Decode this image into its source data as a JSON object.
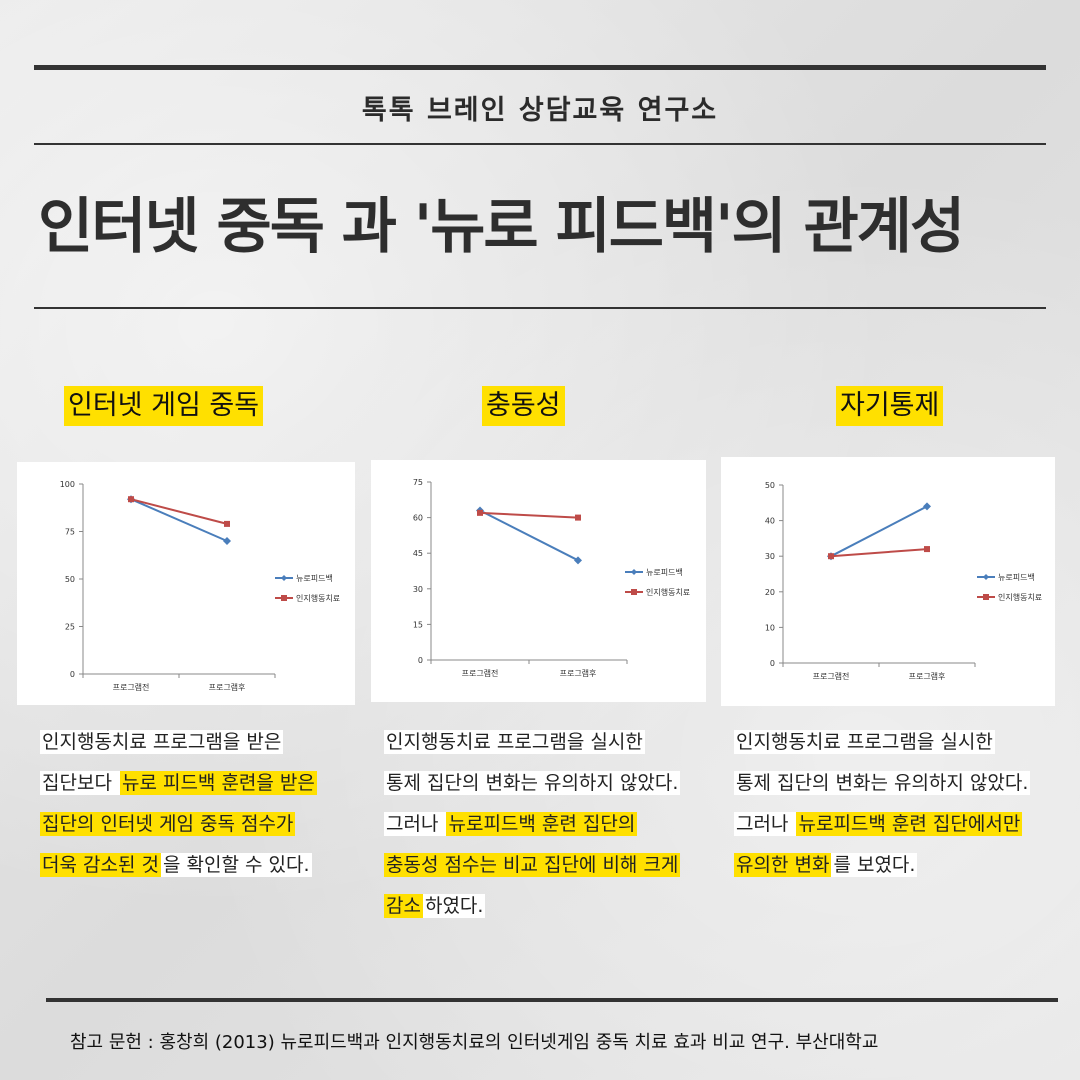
{
  "header": {
    "org": "톡톡 브레인 상담교육 연구소",
    "title": "인터넷 중독 과 '뉴로 피드백'의 관계성"
  },
  "columns": [
    {
      "heading": "인터넷 게임 중독",
      "desc": [
        [
          {
            "t": "인지행동치료 프로그램을 받은 ",
            "h": false
          }
        ],
        [
          {
            "t": "집단보다 ",
            "h": false
          },
          {
            "t": "뉴로 피드백 훈련을 받은",
            "h": true
          }
        ],
        [
          {
            "t": "집단의 인터넷 게임 중독 점수가",
            "h": true
          }
        ],
        [
          {
            "t": "더욱 감소된 것",
            "h": true
          },
          {
            "t": "을 확인할 수 있다.",
            "h": false
          }
        ]
      ]
    },
    {
      "heading": "충동성",
      "desc": [
        [
          {
            "t": "인지행동치료 프로그램을 실시한",
            "h": false
          }
        ],
        [
          {
            "t": "통제 집단의 변화는 유의하지 않았다.",
            "h": false
          }
        ],
        [
          {
            "t": "그러나 ",
            "h": false
          },
          {
            "t": "뉴로피드백 훈련 집단의",
            "h": true
          }
        ],
        [
          {
            "t": "충동성 점수는 비교 집단에 비해 크게",
            "h": true
          }
        ],
        [
          {
            "t": "감소",
            "h": true
          },
          {
            "t": "하였다.",
            "h": false
          }
        ]
      ]
    },
    {
      "heading": "자기통제",
      "desc": [
        [
          {
            "t": "인지행동치료 프로그램을 실시한",
            "h": false
          }
        ],
        [
          {
            "t": "통제 집단의 변화는 유의하지 않았다.",
            "h": false
          }
        ],
        [
          {
            "t": "그러나 ",
            "h": false
          },
          {
            "t": "뉴로피드백 훈련 집단에서만",
            "h": true
          }
        ],
        [
          {
            "t": "유의한 변화",
            "h": true
          },
          {
            "t": "를 보였다.",
            "h": false
          }
        ]
      ]
    }
  ],
  "chart_data": [
    {
      "type": "line",
      "title": "",
      "categories": [
        "프로그램전",
        "프로그램후"
      ],
      "ylim": [
        0,
        100
      ],
      "yticks": [
        0,
        25,
        50,
        75,
        100
      ],
      "legend_position": "right",
      "grid": false,
      "series": [
        {
          "name": "뉴로피드백",
          "color": "#4a7ebb",
          "marker": "diamond",
          "values": [
            92,
            70
          ]
        },
        {
          "name": "인지행동치료",
          "color": "#be4b48",
          "marker": "square",
          "values": [
            92,
            79
          ]
        }
      ]
    },
    {
      "type": "line",
      "title": "",
      "categories": [
        "프로그램전",
        "프로그램후"
      ],
      "ylim": [
        0,
        75
      ],
      "yticks": [
        0,
        15,
        30,
        45,
        60,
        75
      ],
      "legend_position": "right",
      "grid": false,
      "series": [
        {
          "name": "뉴로피드백",
          "color": "#4a7ebb",
          "marker": "diamond",
          "values": [
            63,
            42
          ]
        },
        {
          "name": "인지행동치료",
          "color": "#be4b48",
          "marker": "square",
          "values": [
            62,
            60
          ]
        }
      ]
    },
    {
      "type": "line",
      "title": "",
      "categories": [
        "프로그램전",
        "프로그램후"
      ],
      "ylim": [
        0,
        50
      ],
      "yticks": [
        0,
        10,
        20,
        30,
        40,
        50
      ],
      "legend_position": "right",
      "grid": false,
      "series": [
        {
          "name": "뉴로피드백",
          "color": "#4a7ebb",
          "marker": "diamond",
          "values": [
            30,
            44
          ]
        },
        {
          "name": "인지행동치료",
          "color": "#be4b48",
          "marker": "square",
          "values": [
            30,
            32
          ]
        }
      ]
    }
  ],
  "reference": "참고 문헌 : 홍창희 (2013) 뉴로피드백과 인지행동치료의 인터넷게임 중독 치료 효과 비교 연구. 부산대학교"
}
